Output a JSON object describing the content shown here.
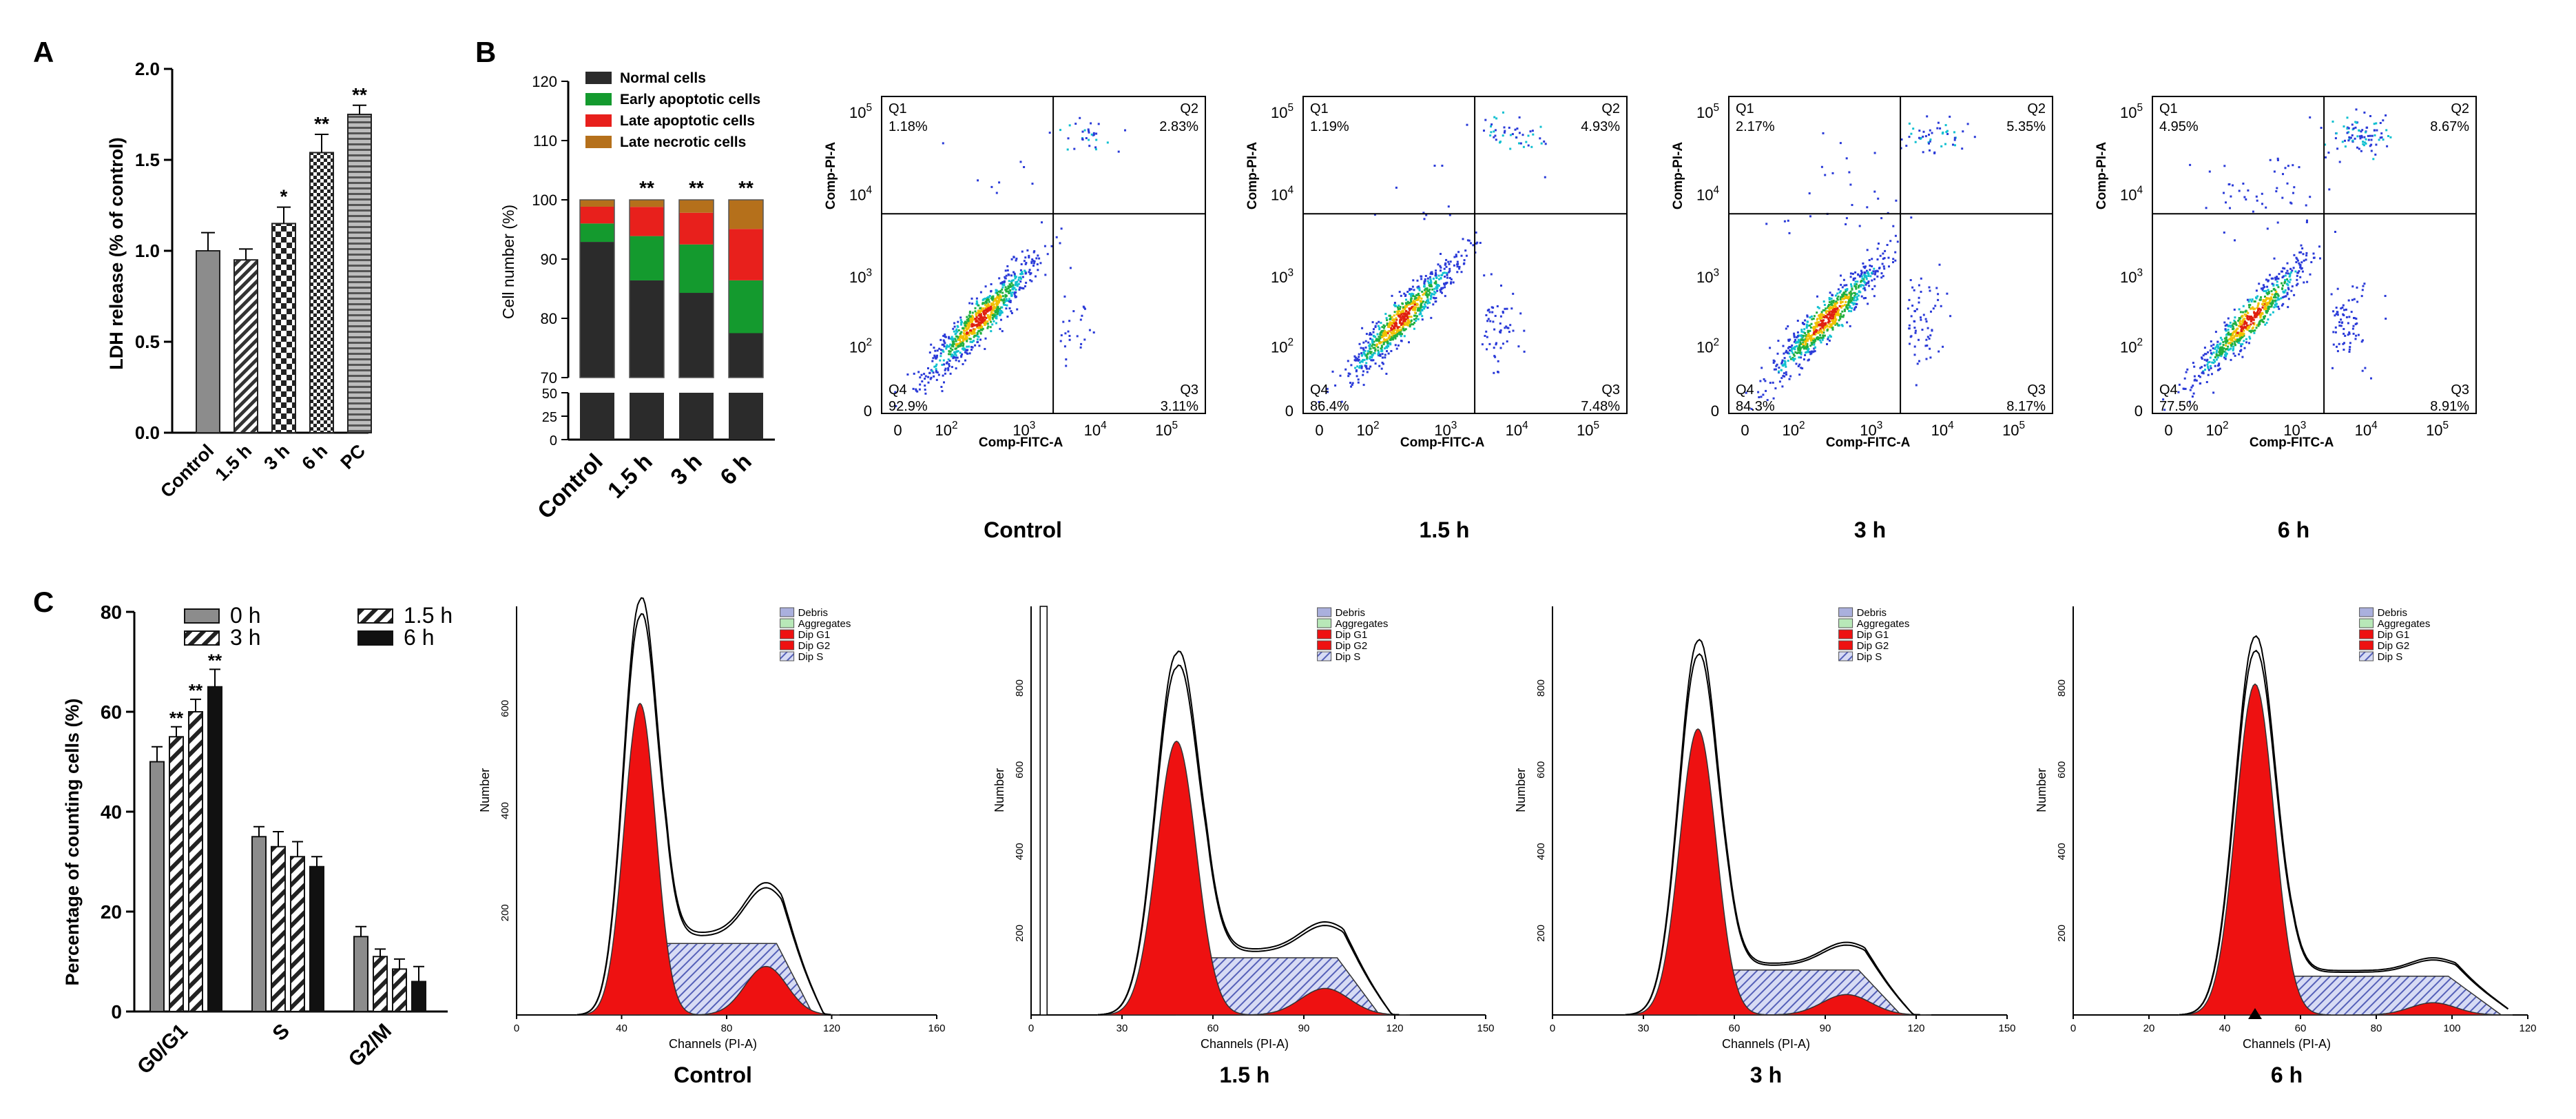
{
  "panel_labels": [
    "A",
    "B",
    "C"
  ],
  "colors": {
    "normal": "#2b2b2b",
    "early": "#149a2e",
    "late_apoptotic": "#e8201c",
    "late_necrotic": "#b5701b",
    "gray_bar": "#8c8c8c",
    "g1_fill": "#ee1111",
    "s_fill": "#b9bfe8",
    "debris": "#aab0dd",
    "aggregates": "#b8e8b8",
    "legend_text": "#2233cc"
  },
  "chart_data": [
    {
      "id": "A",
      "type": "bar",
      "categories": [
        "Control",
        "1.5 h",
        "3 h",
        "6 h",
        "PC"
      ],
      "values": [
        1.0,
        0.95,
        1.15,
        1.54,
        1.75
      ],
      "errors": [
        0.1,
        0.06,
        0.09,
        0.1,
        0.05
      ],
      "significance": [
        "",
        "",
        "*",
        "**",
        "**"
      ],
      "patterns": [
        "solid",
        "diagonal",
        "checker",
        "checker-fine",
        "horizontal"
      ],
      "ylabel": "LDH release (% of control)",
      "yticks": [
        "0.0",
        "0.5",
        "1.0",
        "1.5",
        "2.0"
      ],
      "ylim": [
        0,
        2.0
      ]
    },
    {
      "id": "B",
      "type": "bar",
      "stacked": true,
      "categories": [
        "Control",
        "1.5 h",
        "3 h",
        "6 h"
      ],
      "ylabel": "Cell number (%)",
      "yticks_upper": [
        "70",
        "80",
        "90",
        "100",
        "110",
        "120"
      ],
      "yticks_lower": [
        "0",
        "25",
        "50"
      ],
      "ylim_upper": [
        70,
        120
      ],
      "ylim_lower": [
        0,
        50
      ],
      "significance": [
        "",
        "**",
        "**",
        "**"
      ],
      "series": [
        {
          "name": "Normal cells",
          "values": [
            92.9,
            86.4,
            84.3,
            77.5
          ]
        },
        {
          "name": "Early apoptotic cells",
          "values": [
            3.11,
            7.48,
            8.17,
            8.91
          ]
        },
        {
          "name": "Late apoptotic cells",
          "values": [
            2.83,
            4.93,
            5.35,
            8.67
          ]
        },
        {
          "name": "Late necrotic cells",
          "values": [
            1.18,
            1.19,
            2.17,
            4.95
          ]
        }
      ]
    },
    {
      "id": "B-flow",
      "type": "scatter",
      "xlabel": "Comp-FITC-A",
      "ylabel": "Comp-PI-A",
      "x_tick_labels": [
        "0",
        "10^2",
        "10^3",
        "10^4",
        "10^5"
      ],
      "y_tick_labels": [
        "0",
        "10^2",
        "10^3",
        "10^4",
        "10^5"
      ],
      "plots": [
        {
          "title": "Control",
          "Q1": "1.18%",
          "Q2": "2.83%",
          "Q3": "3.11%",
          "Q4": "92.9%"
        },
        {
          "title": "1.5 h",
          "Q1": "1.19%",
          "Q2": "4.93%",
          "Q3": "7.48%",
          "Q4": "86.4%"
        },
        {
          "title": "3 h",
          "Q1": "2.17%",
          "Q2": "5.35%",
          "Q3": "8.17%",
          "Q4": "84.3%"
        },
        {
          "title": "6 h",
          "Q1": "4.95%",
          "Q2": "8.67%",
          "Q3": "8.91%",
          "Q4": "77.5%"
        }
      ]
    },
    {
      "id": "C",
      "type": "bar",
      "categories": [
        "G0/G1",
        "S",
        "G2/M"
      ],
      "ylabel": "Percentage of  counting cells (%)",
      "yticks": [
        "0",
        "20",
        "40",
        "60",
        "80"
      ],
      "ylim": [
        0,
        80
      ],
      "series": [
        {
          "name": "0 h",
          "values": [
            50,
            35,
            15
          ],
          "errors": [
            3,
            2,
            2
          ],
          "significance": [
            "",
            "",
            ""
          ]
        },
        {
          "name": "1.5 h",
          "values": [
            55,
            33,
            11
          ],
          "errors": [
            2,
            3,
            1.5
          ],
          "significance": [
            "**",
            "",
            ""
          ]
        },
        {
          "name": "3 h",
          "values": [
            60,
            31,
            8.5
          ],
          "errors": [
            2.5,
            3,
            2
          ],
          "significance": [
            "**",
            "",
            ""
          ]
        },
        {
          "name": "6 h",
          "values": [
            65,
            29,
            6
          ],
          "errors": [
            3.5,
            2,
            3
          ],
          "significance": [
            "**",
            "",
            ""
          ]
        }
      ]
    },
    {
      "id": "C-hist",
      "type": "area",
      "xlabel": "Channels (PI-A)",
      "ylabel": "Number",
      "legend": [
        "Debris",
        "Aggregates",
        "Dip G1",
        "Dip G2",
        "Dip S"
      ],
      "plots": [
        {
          "title": "Control",
          "xmax": 160,
          "xticks": [
            "0",
            "40",
            "80",
            "120",
            "160"
          ],
          "ymax": 800,
          "yticks": [
            "200",
            "400",
            "600"
          ],
          "g1_mean": 47,
          "g1_peak": 610,
          "g1_sd": 6,
          "g2_mean": 95,
          "g2_peak": 95,
          "g2_sd": 8,
          "s_peak": 140,
          "total_peak": 780,
          "marker": false
        },
        {
          "title": "1.5 h",
          "xmax": 150,
          "xticks": [
            "0",
            "30",
            "60",
            "90",
            "120",
            "150"
          ],
          "ymax": 1000,
          "yticks": [
            "200",
            "400",
            "600",
            "800"
          ],
          "g1_mean": 48,
          "g1_peak": 670,
          "g1_sd": 6.5,
          "g2_mean": 97,
          "g2_peak": 65,
          "g2_sd": 8,
          "s_peak": 140,
          "total_peak": 850,
          "marker": false
        },
        {
          "title": "3 h",
          "xmax": 150,
          "xticks": [
            "0",
            "30",
            "60",
            "90",
            "120",
            "150"
          ],
          "ymax": 1000,
          "yticks": [
            "200",
            "400",
            "600",
            "800"
          ],
          "g1_mean": 48,
          "g1_peak": 700,
          "g1_sd": 6,
          "g2_mean": 97,
          "g2_peak": 50,
          "g2_sd": 8,
          "s_peak": 110,
          "total_peak": 880,
          "marker": false
        },
        {
          "title": "6 h",
          "xmax": 120,
          "xticks": [
            "0",
            "20",
            "40",
            "60",
            "80",
            "100",
            "120"
          ],
          "ymax": 1000,
          "yticks": [
            "200",
            "400",
            "600",
            "800"
          ],
          "g1_mean": 48,
          "g1_peak": 810,
          "g1_sd": 5,
          "g2_mean": 95,
          "g2_peak": 30,
          "g2_sd": 6,
          "s_peak": 95,
          "total_peak": 890,
          "marker": true
        }
      ]
    }
  ]
}
